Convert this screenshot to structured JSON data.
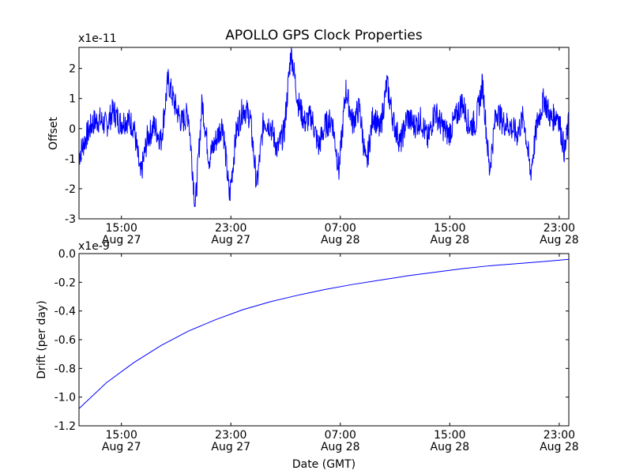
{
  "figure_title": "APOLLO GPS Clock Properties",
  "chart_data": [
    {
      "type": "line",
      "ylabel": "Offset",
      "xlabel": "",
      "y_multiplier": "x1e-11",
      "x_unit": "hours since 2014-08-27 00:00 GMT",
      "xlim": [
        11.9,
        47.7
      ],
      "ylim": [
        -3,
        2.7
      ],
      "yticks": [
        -3,
        -2,
        -1,
        0,
        1,
        2
      ],
      "ytick_labels": [
        "-3",
        "-2",
        "-1",
        "0",
        "1",
        "2"
      ],
      "xticks": [
        15,
        23,
        31,
        39,
        47
      ],
      "xtick_labels": [
        [
          "15:00",
          "Aug 27"
        ],
        [
          "23:00",
          "Aug 27"
        ],
        [
          "07:00",
          "Aug 28"
        ],
        [
          "15:00",
          "Aug 28"
        ],
        [
          "23:00",
          "Aug 28"
        ]
      ],
      "color": "#0000ff",
      "series": [
        {
          "name": "offset",
          "x": [
            11.9,
            12.4,
            12.9,
            13.4,
            13.9,
            14.4,
            14.9,
            15.4,
            15.9,
            16.4,
            16.9,
            17.4,
            17.9,
            18.4,
            18.9,
            19.4,
            19.9,
            20.4,
            20.9,
            21.4,
            21.9,
            22.4,
            22.9,
            23.4,
            23.9,
            24.4,
            24.9,
            25.4,
            25.9,
            26.4,
            26.9,
            27.4,
            27.9,
            28.4,
            28.9,
            29.4,
            29.9,
            30.4,
            30.9,
            31.4,
            31.9,
            32.4,
            32.9,
            33.4,
            33.9,
            34.4,
            34.9,
            35.4,
            35.9,
            36.4,
            36.9,
            37.4,
            37.9,
            38.4,
            38.9,
            39.4,
            39.9,
            40.4,
            40.9,
            41.4,
            41.9,
            42.4,
            42.9,
            43.4,
            43.9,
            44.4,
            44.9,
            45.4,
            45.9,
            46.4,
            46.9,
            47.4,
            47.7
          ],
          "values": [
            -0.9,
            -0.3,
            0.2,
            0.3,
            0.1,
            0.6,
            0.2,
            0.3,
            0.1,
            -1.6,
            -0.3,
            0.1,
            -0.4,
            1.6,
            0.8,
            0.2,
            0.5,
            -2.6,
            0.9,
            -1.0,
            -0.4,
            0.2,
            -2.3,
            -0.1,
            0.7,
            0.4,
            -1.9,
            0.3,
            0.1,
            -0.7,
            -0.1,
            2.6,
            0.9,
            0.2,
            0.4,
            -0.6,
            0.1,
            0.3,
            -1.4,
            1.3,
            0.2,
            0.7,
            -1.3,
            0.5,
            -0.1,
            1.5,
            0.2,
            -0.5,
            0.4,
            0.1,
            0.3,
            -0.4,
            0.6,
            0.1,
            -0.2,
            0.3,
            0.9,
            0.1,
            0.2,
            1.5,
            -1.4,
            0.6,
            0.2,
            0.1,
            -0.2,
            0.4,
            -1.5,
            0.2,
            1.0,
            0.3,
            0.5,
            -0.8,
            0.2
          ]
        }
      ]
    },
    {
      "type": "line",
      "ylabel": "Drift (per day)",
      "xlabel": "Date (GMT)",
      "y_multiplier": "x1e-9",
      "x_unit": "hours since 2014-08-27 00:00 GMT",
      "xlim": [
        11.9,
        47.7
      ],
      "ylim": [
        -1.2,
        0.0
      ],
      "yticks": [
        -1.2,
        -1.0,
        -0.8,
        -0.6,
        -0.4,
        -0.2,
        0.0
      ],
      "ytick_labels": [
        "-1.2",
        "-1.0",
        "-0.8",
        "-0.6",
        "-0.4",
        "-0.2",
        "0.0"
      ],
      "xticks": [
        15,
        23,
        31,
        39,
        47
      ],
      "xtick_labels": [
        [
          "15:00",
          "Aug 27"
        ],
        [
          "23:00",
          "Aug 27"
        ],
        [
          "07:00",
          "Aug 28"
        ],
        [
          "15:00",
          "Aug 28"
        ],
        [
          "23:00",
          "Aug 28"
        ]
      ],
      "color": "#0000ff",
      "series": [
        {
          "name": "drift",
          "x": [
            11.9,
            13.9,
            15.9,
            17.9,
            19.9,
            21.9,
            23.9,
            25.9,
            27.9,
            29.9,
            31.9,
            33.9,
            35.9,
            37.9,
            39.9,
            41.9,
            43.9,
            45.9,
            47.7
          ],
          "values": [
            -1.08,
            -0.9,
            -0.76,
            -0.64,
            -0.54,
            -0.46,
            -0.39,
            -0.335,
            -0.29,
            -0.25,
            -0.215,
            -0.185,
            -0.155,
            -0.13,
            -0.105,
            -0.085,
            -0.07,
            -0.055,
            -0.04
          ]
        }
      ]
    }
  ]
}
